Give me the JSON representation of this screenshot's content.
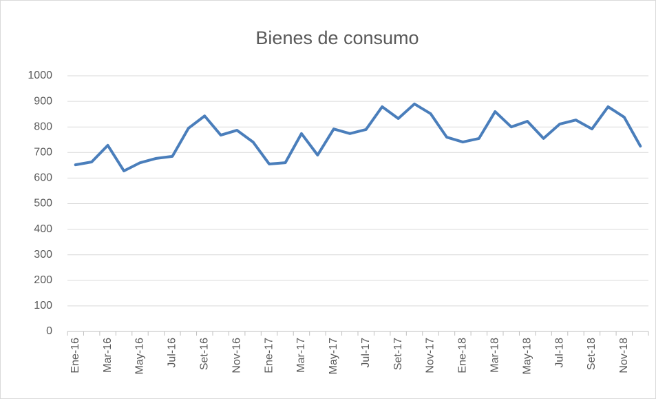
{
  "chart_data": {
    "type": "line",
    "title": "Bienes de consumo",
    "categories": [
      "Ene-16",
      null,
      "Mar-16",
      null,
      "May-16",
      null,
      "Jul-16",
      null,
      "Set-16",
      null,
      "Nov-16",
      null,
      "Ene-17",
      null,
      "Mar-17",
      null,
      "May-17",
      null,
      "Jul-17",
      null,
      "Set-17",
      null,
      "Nov-17",
      null,
      "Ene-18",
      null,
      "Mar-18",
      null,
      "May-18",
      null,
      "Jul-18",
      null,
      "Set-18",
      null,
      "Nov-18",
      null
    ],
    "series": [
      {
        "name": "Bienes de consumo",
        "color": "#4a7ebb",
        "values": [
          652,
          663,
          728,
          628,
          660,
          677,
          685,
          795,
          843,
          768,
          787,
          741,
          655,
          660,
          774,
          690,
          792,
          774,
          790,
          879,
          833,
          890,
          852,
          760,
          741,
          755,
          860,
          800,
          822,
          755,
          811,
          827,
          792,
          879,
          838,
          725
        ]
      }
    ],
    "ylim": [
      0,
      1000
    ],
    "yticks": [
      0,
      100,
      200,
      300,
      400,
      500,
      600,
      700,
      800,
      900,
      1000
    ],
    "grid": true
  }
}
